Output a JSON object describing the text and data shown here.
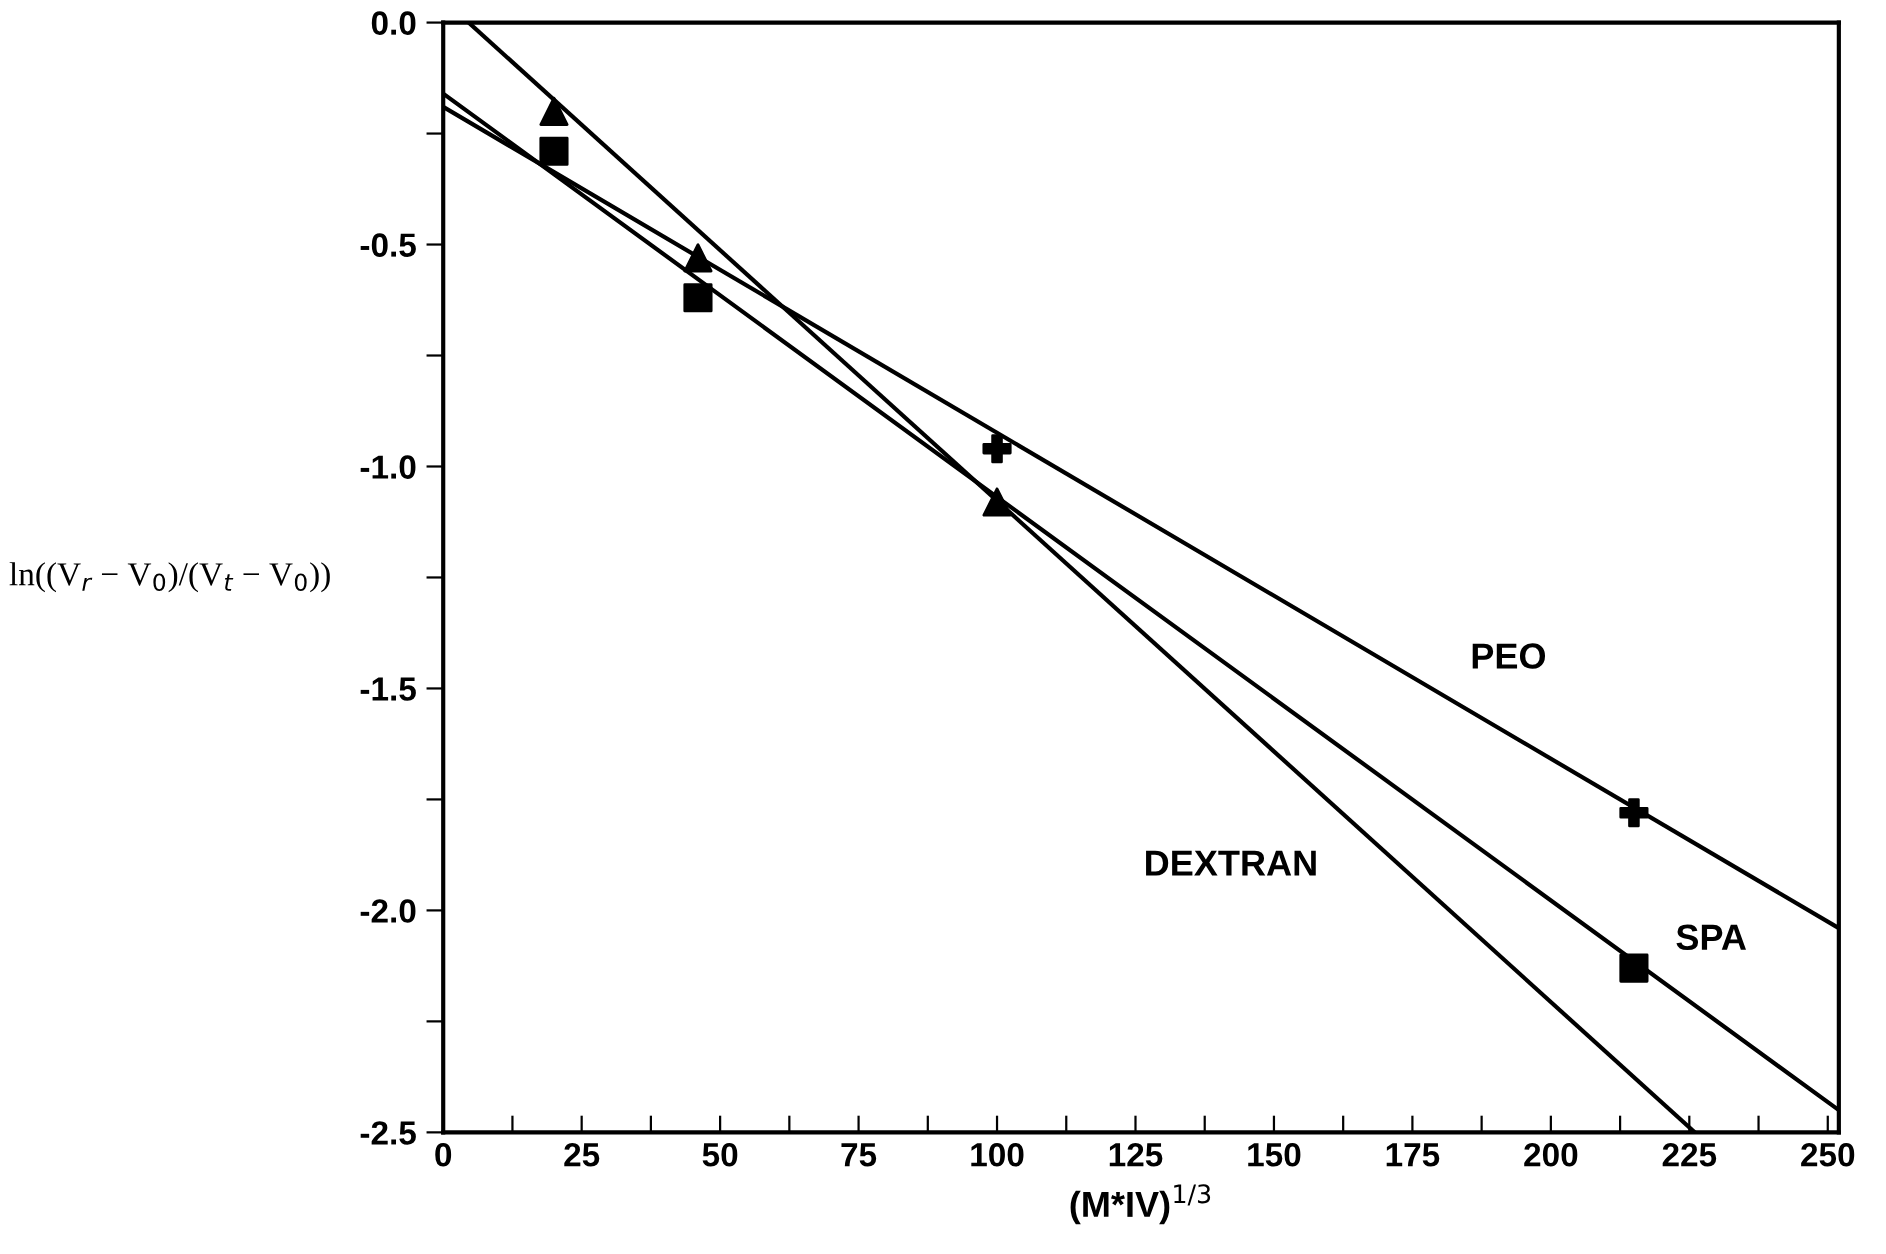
{
  "chart_data": {
    "type": "scatter",
    "xlabel": "(M*IV)$^{1/3}$",
    "ylabel": "ln((V$_{r}$ − V$_{0}$)/(V$_{t}$ − V$_{0}$))",
    "xlim": [
      0,
      252
    ],
    "ylim": [
      -2.5,
      0
    ],
    "xticks": [
      0,
      {
        "value": 12.5,
        "label": null
      },
      25,
      {
        "value": 37.5,
        "label": null
      },
      50,
      {
        "value": 62.5,
        "label": null
      },
      75,
      {
        "value": 87.5,
        "label": null
      },
      100,
      {
        "value": 112.5,
        "label": null
      },
      125,
      {
        "value": 137.5,
        "label": null
      },
      150,
      {
        "value": 162.5,
        "label": null
      },
      175,
      {
        "value": 187.5,
        "label": null
      },
      200,
      {
        "value": 212.5,
        "label": null
      },
      225,
      {
        "value": 237.5,
        "label": null
      },
      250
    ],
    "yticks": [
      -2.5,
      {
        "value": -2.25,
        "label": null
      },
      {
        "value": -2,
        "label": "-2.0"
      },
      {
        "value": -1.75,
        "label": null
      },
      -1.5,
      {
        "value": -1.25,
        "label": null
      },
      {
        "value": -1,
        "label": "-1.0"
      },
      {
        "value": -0.75,
        "label": null
      },
      -0.5,
      {
        "value": -0.25,
        "label": null
      },
      {
        "value": 0,
        "label": "0.0"
      }
    ],
    "grid": false,
    "legend": false,
    "series": [
      {
        "marker": "triangle",
        "color": "#000000",
        "x": [
          20,
          46,
          100
        ],
        "values": [
          -0.2,
          -0.53,
          -1.08
        ]
      },
      {
        "marker": "square",
        "color": "#000000",
        "x": [
          20,
          46,
          215
        ],
        "values": [
          -0.29,
          -0.62,
          -2.13
        ]
      },
      {
        "marker": "cross",
        "color": "#000000",
        "x": [
          100,
          215
        ],
        "values": [
          -0.96,
          -1.78
        ]
      },
      {
        "type": "line",
        "name": "DEXTRAN",
        "marker": "none",
        "line_style": "solid",
        "color": "#000000",
        "x": [
          4.6,
          226
        ],
        "values": [
          0.0,
          -2.5
        ]
      },
      {
        "type": "line",
        "name": "SPA",
        "marker": "none",
        "line_style": "solid",
        "color": "#000000",
        "x": [
          0,
          252
        ],
        "values": [
          -0.16,
          -2.45
        ]
      },
      {
        "type": "line",
        "name": "PEO",
        "marker": "none",
        "line_style": "solid",
        "color": "#000000",
        "x": [
          0,
          252
        ],
        "values": [
          -0.19,
          -2.04
        ]
      }
    ]
  }
}
